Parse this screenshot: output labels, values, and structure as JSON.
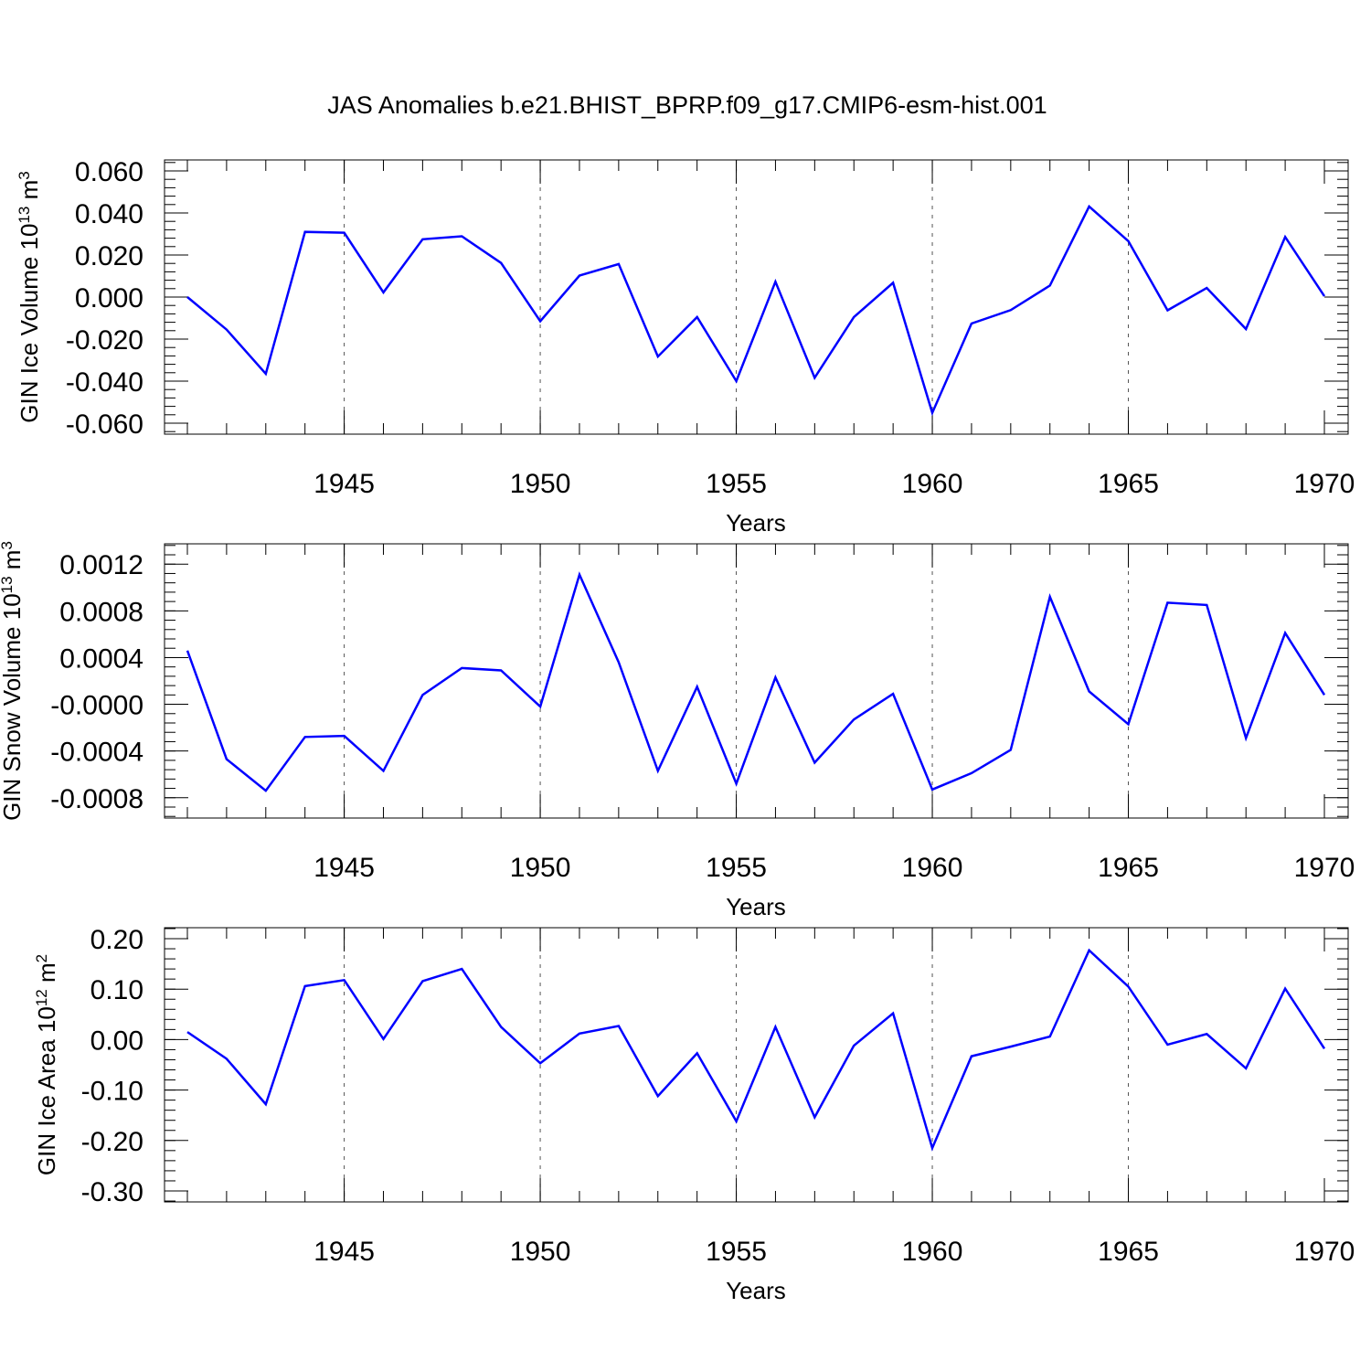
{
  "title": "JAS Anomalies b.e21.BHIST_BPRP.f09_g17.CMIP6-esm-hist.001",
  "colors": {
    "line": "#0000ff",
    "axis": "#000000",
    "grid": "#555555"
  },
  "chart_data": [
    {
      "type": "line",
      "xlabel": "Years",
      "ylabel_main": "GIN Ice Volume 10",
      "ylabel_exp": "13",
      "ylabel_unit": " m",
      "ylabel_unit_exp": "3",
      "xlim": [
        1941,
        1970
      ],
      "ylim": [
        -0.06,
        0.06
      ],
      "yticks": [
        0.06,
        0.04,
        0.02,
        0.0,
        -0.02,
        -0.04,
        -0.06
      ],
      "ytick_labels": [
        "0.060",
        "0.040",
        "0.020",
        "0.000",
        "-0.020",
        "-0.040",
        "-0.060"
      ],
      "xticks": [
        1945,
        1950,
        1955,
        1960,
        1965,
        1970
      ],
      "xtick_labels": [
        "1945",
        "1950",
        "1955",
        "1960",
        "1965",
        "1970"
      ],
      "grid_x": [
        1945,
        1950,
        1955,
        1960,
        1965
      ],
      "x": [
        1941,
        1942,
        1943,
        1944,
        1945,
        1946,
        1947,
        1948,
        1949,
        1950,
        1951,
        1952,
        1953,
        1954,
        1955,
        1956,
        1957,
        1958,
        1959,
        1960,
        1961,
        1962,
        1963,
        1964,
        1965,
        1966,
        1967,
        1968,
        1969,
        1970
      ],
      "series": [
        {
          "name": "GIN Ice Volume",
          "values": [
            0.0,
            -0.0155,
            -0.0365,
            0.031,
            0.0306,
            0.0022,
            0.0275,
            0.0289,
            0.0162,
            -0.0115,
            0.0102,
            0.0157,
            -0.0283,
            -0.0095,
            -0.04,
            0.0073,
            -0.0384,
            -0.0095,
            0.0068,
            -0.0551,
            -0.0126,
            -0.0062,
            0.0055,
            0.0431,
            0.0266,
            -0.0063,
            0.0043,
            -0.0152,
            0.0286,
            0.0004
          ]
        }
      ]
    },
    {
      "type": "line",
      "xlabel": "Years",
      "ylabel_main": "GIN Snow Volume 10",
      "ylabel_exp": "13",
      "ylabel_unit": " m",
      "ylabel_unit_exp": "3",
      "xlim": [
        1941,
        1970
      ],
      "ylim": [
        -0.00088,
        0.00128
      ],
      "yticks": [
        0.0012,
        0.0008,
        0.0004,
        0.0,
        -0.0004,
        -0.0008
      ],
      "ytick_labels": [
        "0.0012",
        "0.0008",
        "0.0004",
        "-0.0000",
        "-0.0004",
        "-0.0008"
      ],
      "xticks": [
        1945,
        1950,
        1955,
        1960,
        1965,
        1970
      ],
      "xtick_labels": [
        "1945",
        "1950",
        "1955",
        "1960",
        "1965",
        "1970"
      ],
      "grid_x": [
        1945,
        1950,
        1955,
        1960,
        1965
      ],
      "x": [
        1941,
        1942,
        1943,
        1944,
        1945,
        1946,
        1947,
        1948,
        1949,
        1950,
        1951,
        1952,
        1953,
        1954,
        1955,
        1956,
        1957,
        1958,
        1959,
        1960,
        1961,
        1962,
        1963,
        1964,
        1965,
        1966,
        1967,
        1968,
        1969,
        1970
      ],
      "series": [
        {
          "name": "GIN Snow Volume",
          "values": [
            0.00046,
            -0.00047,
            -0.00074,
            -0.00028,
            -0.00027,
            -0.00057,
            8e-05,
            0.00031,
            0.00029,
            -2e-05,
            0.00111,
            0.00036,
            -0.00057,
            0.00015,
            -0.00068,
            0.00023,
            -0.0005,
            -0.00013,
            9e-05,
            -0.00073,
            -0.00059,
            -0.00039,
            0.00092,
            0.00011,
            -0.00017,
            0.00087,
            0.00085,
            -0.00029,
            0.00061,
            8e-05
          ]
        }
      ]
    },
    {
      "type": "line",
      "xlabel": "Years",
      "ylabel_main": "GIN Ice Area 10",
      "ylabel_exp": "12",
      "ylabel_unit": " m",
      "ylabel_unit_exp": "2",
      "xlim": [
        1941,
        1970
      ],
      "ylim": [
        -0.3,
        0.2
      ],
      "yticks": [
        0.2,
        0.1,
        0.0,
        -0.1,
        -0.2,
        -0.3
      ],
      "ytick_labels": [
        "0.20",
        "0.10",
        "0.00",
        "-0.10",
        "-0.20",
        "-0.30"
      ],
      "xticks": [
        1945,
        1950,
        1955,
        1960,
        1965,
        1970
      ],
      "xtick_labels": [
        "1945",
        "1950",
        "1955",
        "1960",
        "1965",
        "1970"
      ],
      "grid_x": [
        1945,
        1950,
        1955,
        1960,
        1965
      ],
      "x": [
        1941,
        1942,
        1943,
        1944,
        1945,
        1946,
        1947,
        1948,
        1949,
        1950,
        1951,
        1952,
        1953,
        1954,
        1955,
        1956,
        1957,
        1958,
        1959,
        1960,
        1961,
        1962,
        1963,
        1964,
        1965,
        1966,
        1967,
        1968,
        1969,
        1970
      ],
      "series": [
        {
          "name": "GIN Ice Area",
          "values": [
            0.015,
            -0.038,
            -0.128,
            0.106,
            0.118,
            0.001,
            0.116,
            0.14,
            0.025,
            -0.047,
            0.012,
            0.027,
            -0.112,
            -0.027,
            -0.162,
            0.025,
            -0.154,
            -0.012,
            0.052,
            -0.215,
            -0.033,
            -0.014,
            0.006,
            0.177,
            0.105,
            -0.01,
            0.011,
            -0.057,
            0.101,
            -0.018
          ]
        }
      ]
    }
  ]
}
